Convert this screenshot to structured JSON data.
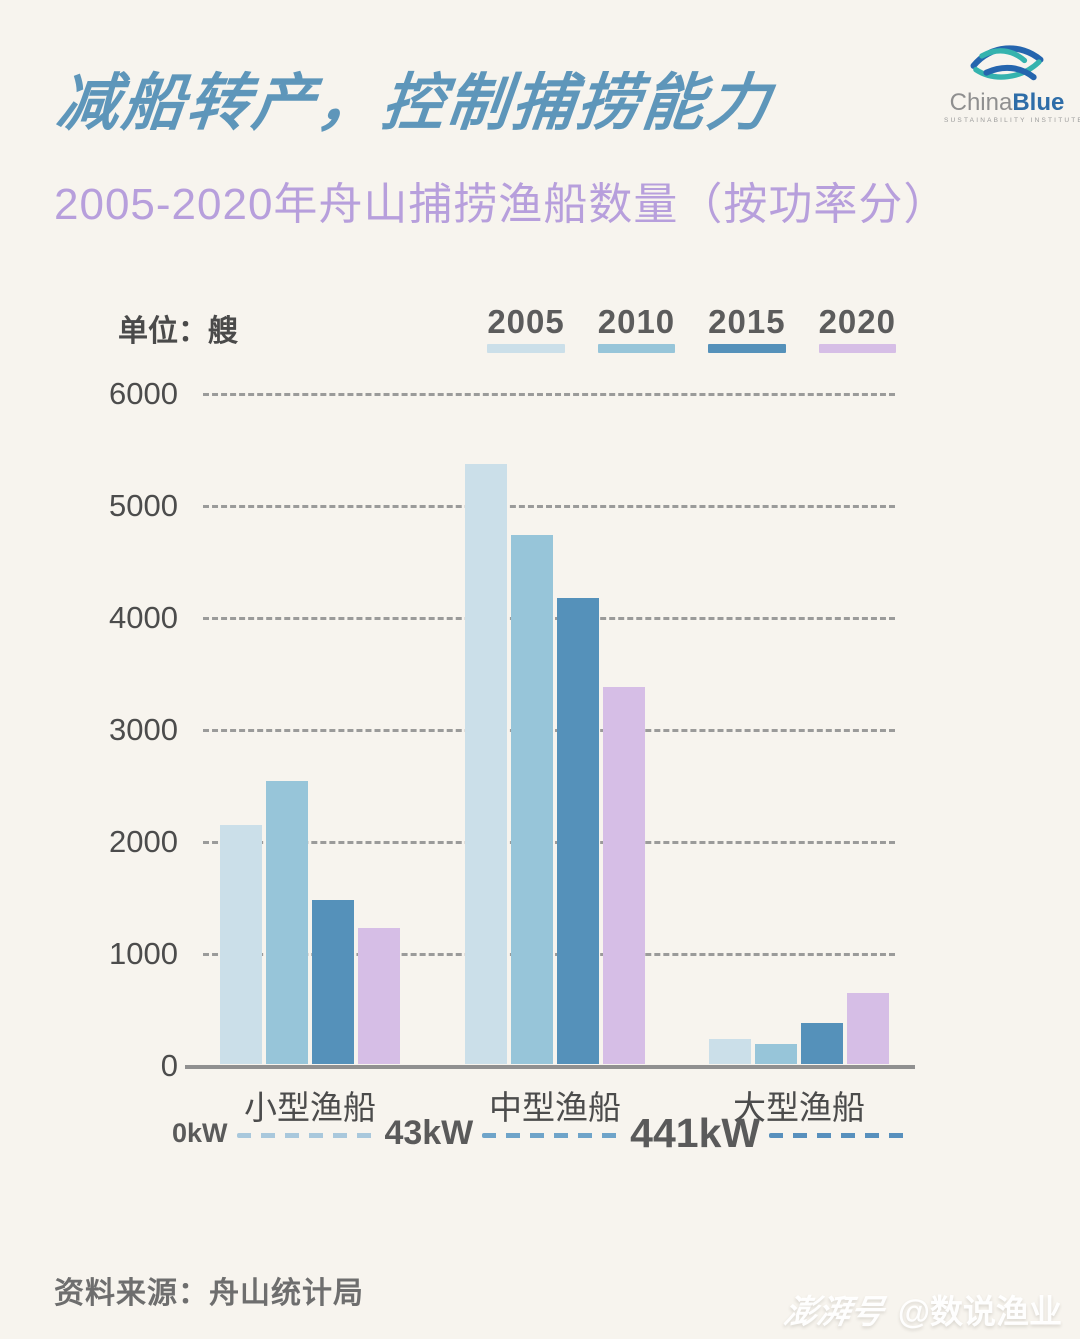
{
  "page": {
    "background": "#F7F4EE"
  },
  "header": {
    "title": "减船转产，控制捕捞能力",
    "title_color": "#5E96BA",
    "subtitle_color": "#B79FDC"
  },
  "logo": {
    "text_primary": "China",
    "text_secondary": "Blue",
    "tagline": "SUSTAINABILITY INSTITUTE",
    "blue": "#2565AE",
    "teal": "#35B3AE"
  },
  "chart_data": {
    "type": "bar",
    "title": "2005-2020年舟山捕捞渔船数量（按功率分）",
    "unit_label": "单位：艘",
    "categories": [
      "小型渔船",
      "中型渔船",
      "大型渔船"
    ],
    "series": [
      {
        "name": "2005",
        "color": "#CBDFE9",
        "values": [
          2130,
          5360,
          220
        ]
      },
      {
        "name": "2010",
        "color": "#97C5D9",
        "values": [
          2530,
          4720,
          180
        ]
      },
      {
        "name": "2015",
        "color": "#5591BA",
        "values": [
          1460,
          4160,
          370
        ]
      },
      {
        "name": "2020",
        "color": "#D6BEE6",
        "values": [
          1210,
          3370,
          630
        ]
      }
    ],
    "ylim": [
      0,
      6000
    ],
    "ytick_step": 1000,
    "grid": "horizontal dashed",
    "legend_position": "top-right",
    "power_scale": {
      "labels": [
        "0kW",
        "43kW",
        "441kW"
      ],
      "dash_colors": [
        "#A9C8DC",
        "#6FA4C9",
        "#5890BD"
      ]
    }
  },
  "footer": {
    "source": "资料来源：舟山统计局",
    "watermark_brand": "澎湃号",
    "watermark_account": "@数说渔业"
  }
}
